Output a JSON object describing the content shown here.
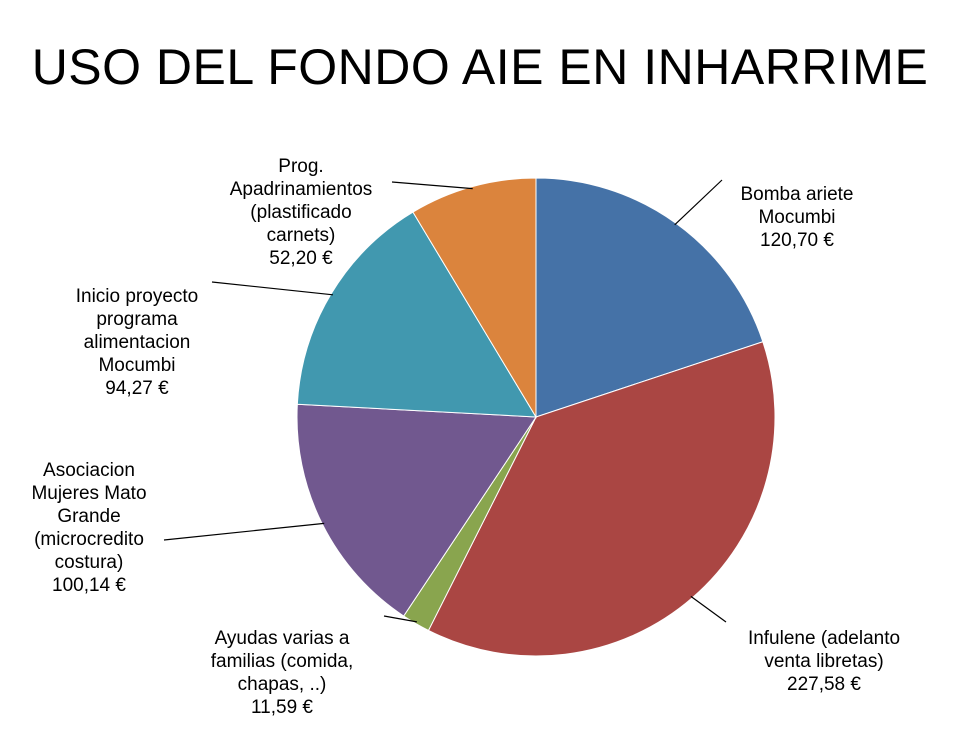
{
  "title": "USO DEL FONDO AIE EN INHARRIME",
  "chart_data": {
    "type": "pie",
    "title": "USO DEL FONDO AIE EN INHARRIME",
    "slices": [
      {
        "label": "Bomba ariete\nMocumbi",
        "value_label": "120,70 €",
        "value": 120.7,
        "color": "#4572A7"
      },
      {
        "label": "Infulene (adelanto\nventa libretas)",
        "value_label": "227,58 €",
        "value": 227.58,
        "color": "#AA4643"
      },
      {
        "label": "Ayudas varias a\nfamilias (comida,\nchapas, ..)",
        "value_label": "11,59 €",
        "value": 11.59,
        "color": "#89A54E"
      },
      {
        "label": "Asociacion\nMujeres Mato\nGrande\n(microcredito\ncostura)",
        "value_label": "100,14 €",
        "value": 100.14,
        "color": "#71588F"
      },
      {
        "label": "Inicio proyecto\nprograma\nalimentacion\nMocumbi",
        "value_label": "94,27 €",
        "value": 94.27,
        "color": "#4198AF"
      },
      {
        "label": "Prog.\nApadrinamientos\n(plastificado\ncarnets)",
        "value_label": "52,20 €",
        "value": 52.2,
        "color": "#DB843D"
      }
    ]
  }
}
